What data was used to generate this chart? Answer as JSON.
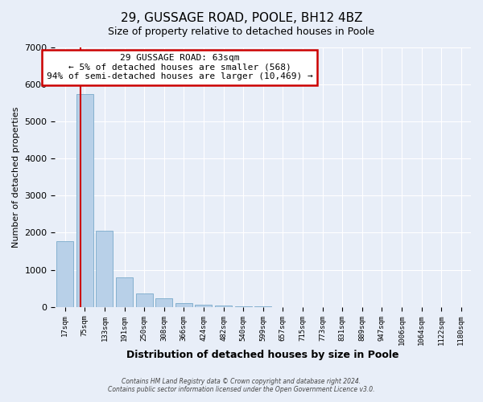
{
  "title": "29, GUSSAGE ROAD, POOLE, BH12 4BZ",
  "subtitle": "Size of property relative to detached houses in Poole",
  "xlabel": "Distribution of detached houses by size in Poole",
  "ylabel": "Number of detached properties",
  "bar_labels": [
    "17sqm",
    "75sqm",
    "133sqm",
    "191sqm",
    "250sqm",
    "308sqm",
    "366sqm",
    "424sqm",
    "482sqm",
    "540sqm",
    "599sqm",
    "657sqm",
    "715sqm",
    "773sqm",
    "831sqm",
    "889sqm",
    "947sqm",
    "1006sqm",
    "1064sqm",
    "1122sqm",
    "1180sqm"
  ],
  "bar_values": [
    1780,
    5750,
    2050,
    800,
    370,
    230,
    110,
    60,
    30,
    10,
    5,
    2,
    1,
    0,
    0,
    0,
    0,
    0,
    0,
    0,
    0
  ],
  "bar_color": "#b8d0e8",
  "bar_edge_color": "#7aaaca",
  "annotation_title": "29 GUSSAGE ROAD: 63sqm",
  "annotation_line1": "← 5% of detached houses are smaller (568)",
  "annotation_line2": "94% of semi-detached houses are larger (10,469) →",
  "annotation_box_facecolor": "#ffffff",
  "annotation_box_edgecolor": "#cc0000",
  "vline_color": "#cc0000",
  "ylim": [
    0,
    7000
  ],
  "yticks": [
    0,
    1000,
    2000,
    3000,
    4000,
    5000,
    6000,
    7000
  ],
  "footer1": "Contains HM Land Registry data © Crown copyright and database right 2024.",
  "footer2": "Contains public sector information licensed under the Open Government Licence v3.0.",
  "background_color": "#e8eef8",
  "plot_bg_color": "#e8eef8",
  "grid_color": "#ffffff",
  "title_fontsize": 11,
  "subtitle_fontsize": 9
}
